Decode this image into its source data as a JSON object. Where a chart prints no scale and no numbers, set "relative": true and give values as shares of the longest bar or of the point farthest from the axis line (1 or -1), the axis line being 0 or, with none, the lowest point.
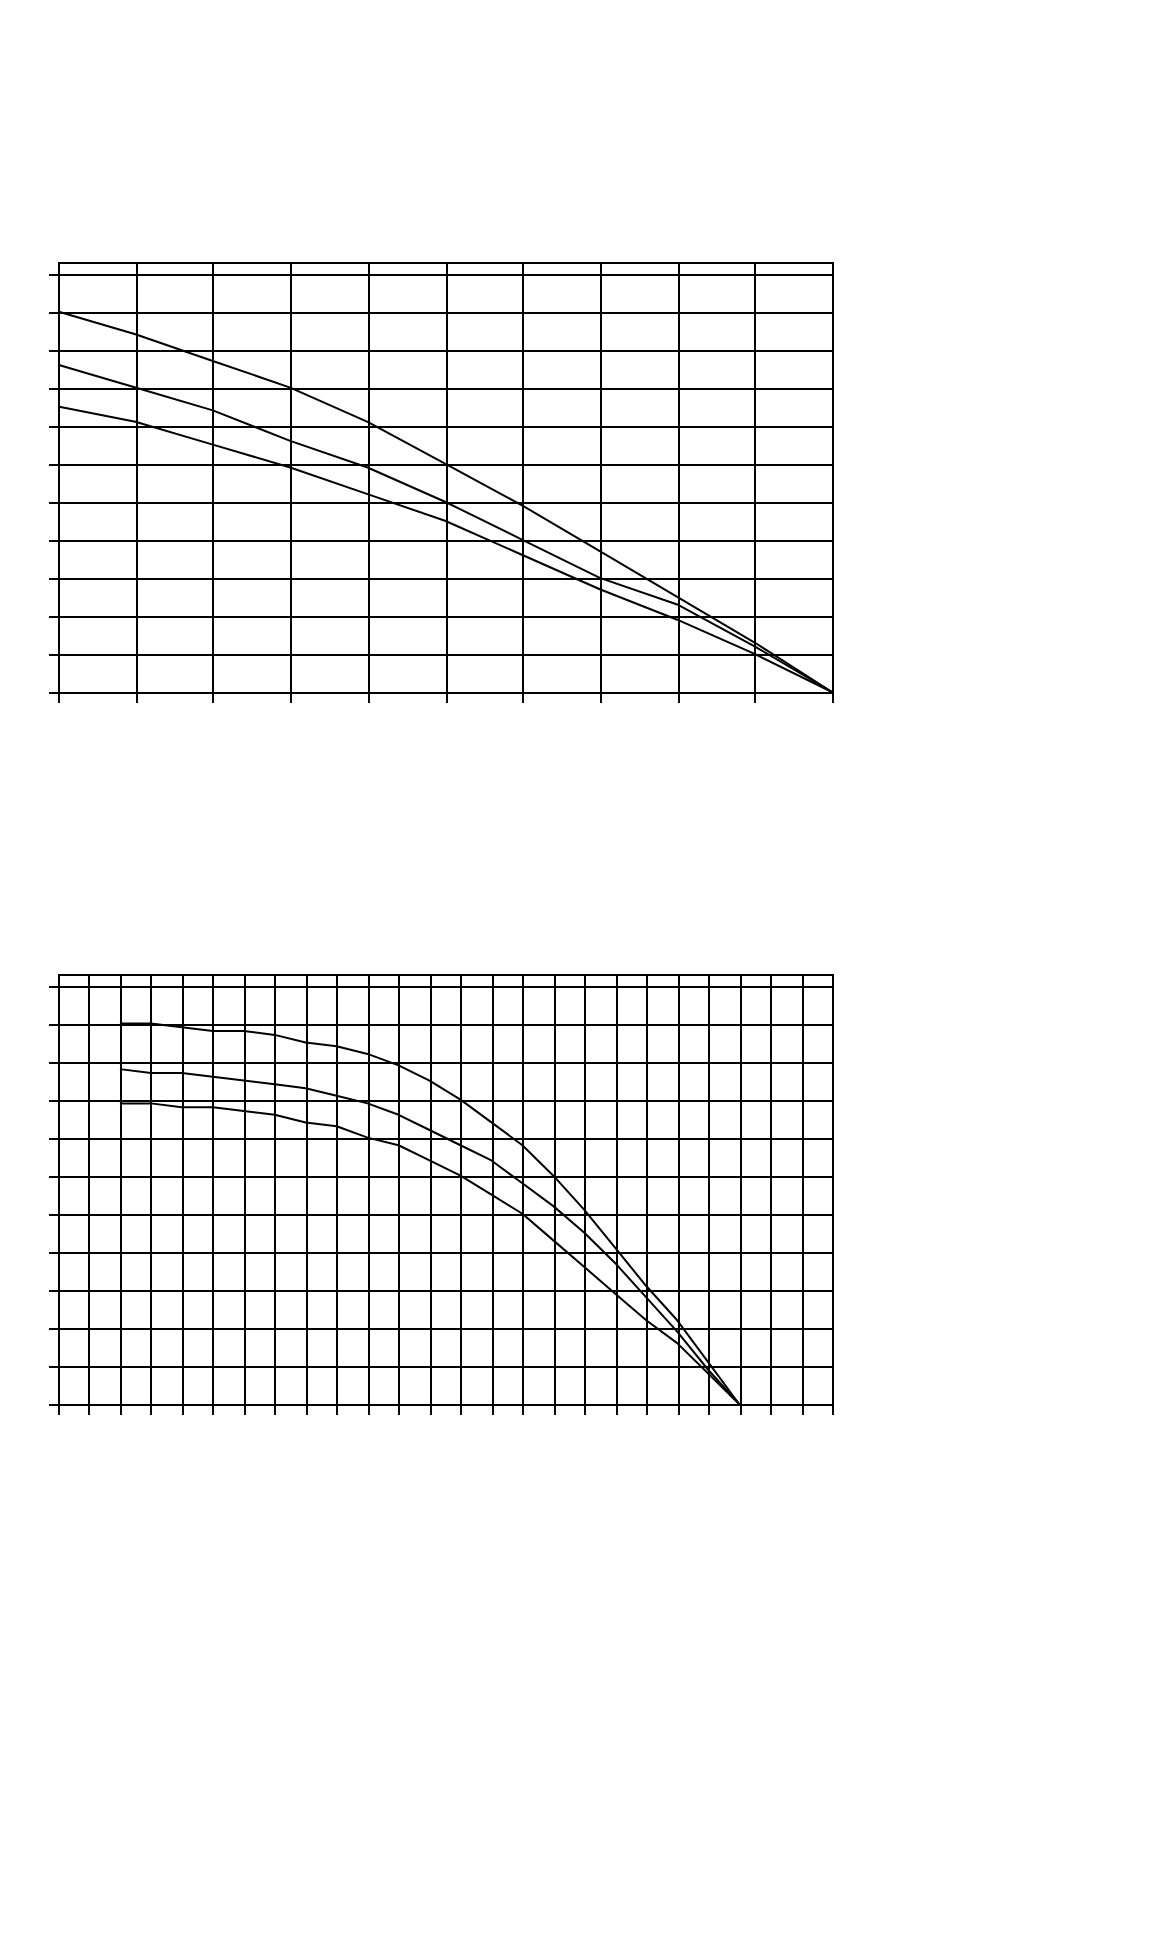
{
  "chart_data": [
    {
      "type": "line",
      "relative": true,
      "grid": true,
      "tick_labels": false,
      "marker": "none",
      "line_style": "solid",
      "categories": [
        null,
        null,
        null,
        null,
        null,
        null,
        null,
        null,
        null,
        null,
        null
      ],
      "series": [
        {
          "color": "#000000",
          "values": [
            1.0,
            0.94,
            0.87,
            0.8,
            0.71,
            0.6,
            0.49,
            0.37,
            0.25,
            0.13,
            0
          ]
        },
        {
          "color": "#000000",
          "values": [
            0.86,
            0.8,
            0.74,
            0.66,
            0.59,
            0.5,
            0.4,
            0.3,
            0.23,
            0.12,
            0
          ]
        },
        {
          "color": "#000000",
          "values": [
            0.75,
            0.71,
            0.65,
            0.59,
            0.52,
            0.45,
            0.36,
            0.27,
            0.19,
            0.1,
            0
          ]
        }
      ]
    },
    {
      "type": "line",
      "relative": true,
      "grid": true,
      "tick_labels": false,
      "marker": "none",
      "line_style": "solid",
      "categories": [
        null,
        null,
        null,
        null,
        null,
        null,
        null,
        null,
        null,
        null,
        null,
        null,
        null,
        null,
        null,
        null,
        null,
        null,
        null,
        null,
        null,
        null,
        null,
        null,
        null,
        null
      ],
      "series": [
        {
          "color": "#000000",
          "values": [
            null,
            null,
            1.0,
            1.0,
            0.99,
            0.98,
            0.98,
            0.97,
            0.95,
            0.94,
            0.92,
            0.89,
            0.85,
            0.8,
            0.74,
            0.68,
            0.6,
            0.51,
            0.41,
            0.31,
            0.22,
            0.11,
            0,
            null,
            null,
            null
          ]
        },
        {
          "color": "#000000",
          "values": [
            null,
            null,
            0.88,
            0.87,
            0.87,
            0.86,
            0.85,
            0.84,
            0.83,
            0.81,
            0.79,
            0.76,
            0.72,
            0.68,
            0.64,
            0.58,
            0.52,
            0.45,
            0.37,
            0.28,
            0.19,
            0.09,
            0,
            null,
            null,
            null
          ]
        },
        {
          "color": "#000000",
          "values": [
            null,
            null,
            0.79,
            0.79,
            0.78,
            0.78,
            0.77,
            0.76,
            0.74,
            0.73,
            0.7,
            0.68,
            0.64,
            0.6,
            0.55,
            0.5,
            0.43,
            0.36,
            0.29,
            0.22,
            0.16,
            0.08,
            0,
            null,
            null,
            null
          ]
        }
      ]
    }
  ]
}
